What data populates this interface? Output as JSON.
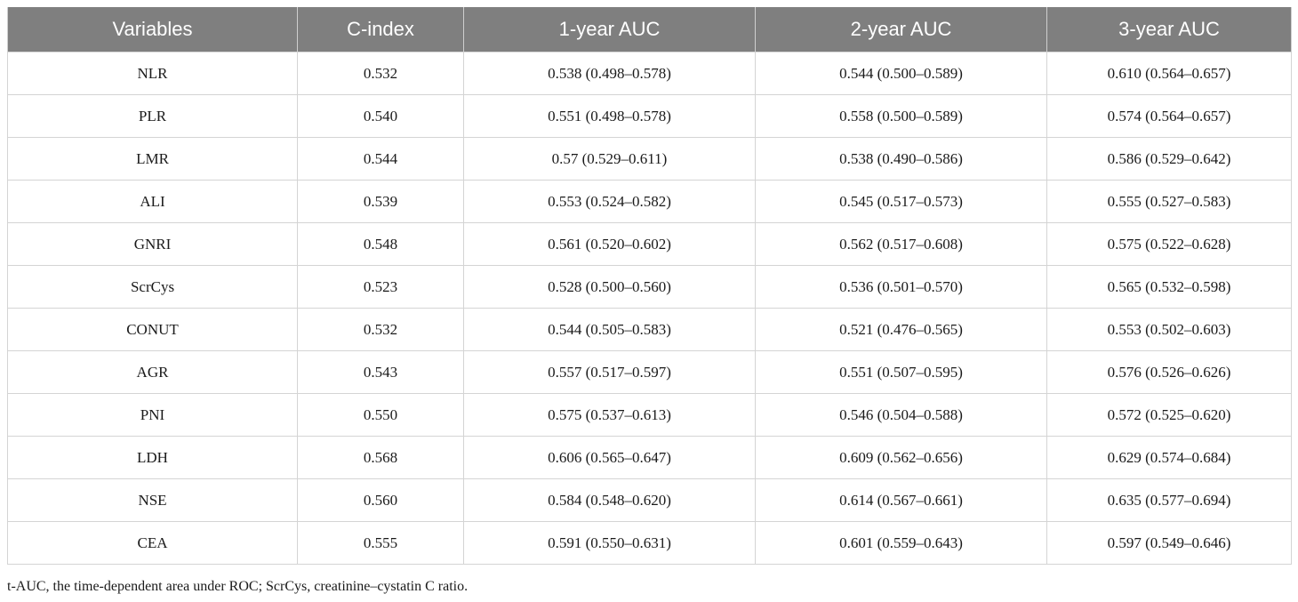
{
  "table": {
    "headers": [
      "Variables",
      "C-index",
      "1-year AUC",
      "2-year AUC",
      "3-year AUC"
    ],
    "rows": [
      [
        "NLR",
        "0.532",
        "0.538 (0.498–0.578)",
        "0.544 (0.500–0.589)",
        "0.610 (0.564–0.657)"
      ],
      [
        "PLR",
        "0.540",
        "0.551 (0.498–0.578)",
        "0.558 (0.500–0.589)",
        "0.574 (0.564–0.657)"
      ],
      [
        "LMR",
        "0.544",
        "0.57 (0.529–0.611)",
        "0.538 (0.490–0.586)",
        "0.586 (0.529–0.642)"
      ],
      [
        "ALI",
        "0.539",
        "0.553 (0.524–0.582)",
        "0.545 (0.517–0.573)",
        "0.555 (0.527–0.583)"
      ],
      [
        "GNRI",
        "0.548",
        "0.561 (0.520–0.602)",
        "0.562 (0.517–0.608)",
        "0.575 (0.522–0.628)"
      ],
      [
        "ScrCys",
        "0.523",
        "0.528 (0.500–0.560)",
        "0.536 (0.501–0.570)",
        "0.565 (0.532–0.598)"
      ],
      [
        "CONUT",
        "0.532",
        "0.544 (0.505–0.583)",
        "0.521 (0.476–0.565)",
        "0.553 (0.502–0.603)"
      ],
      [
        "AGR",
        "0.543",
        "0.557 (0.517–0.597)",
        "0.551 (0.507–0.595)",
        "0.576 (0.526–0.626)"
      ],
      [
        "PNI",
        "0.550",
        "0.575 (0.537–0.613)",
        "0.546 (0.504–0.588)",
        "0.572 (0.525–0.620)"
      ],
      [
        "LDH",
        "0.568",
        "0.606 (0.565–0.647)",
        "0.609 (0.562–0.656)",
        "0.629 (0.574–0.684)"
      ],
      [
        "NSE",
        "0.560",
        "0.584 (0.548–0.620)",
        "0.614 (0.567–0.661)",
        "0.635 (0.577–0.694)"
      ],
      [
        "CEA",
        "0.555",
        "0.591 (0.550–0.631)",
        "0.601 (0.559–0.643)",
        "0.597 (0.549–0.646)"
      ]
    ]
  },
  "footnote": "t-AUC, the time-dependent area under ROC; ScrCys, creatinine–cystatin C ratio.",
  "colors": {
    "header_background": "#7f7f7f",
    "header_text": "#ffffff",
    "border": "#d4d4d4"
  }
}
